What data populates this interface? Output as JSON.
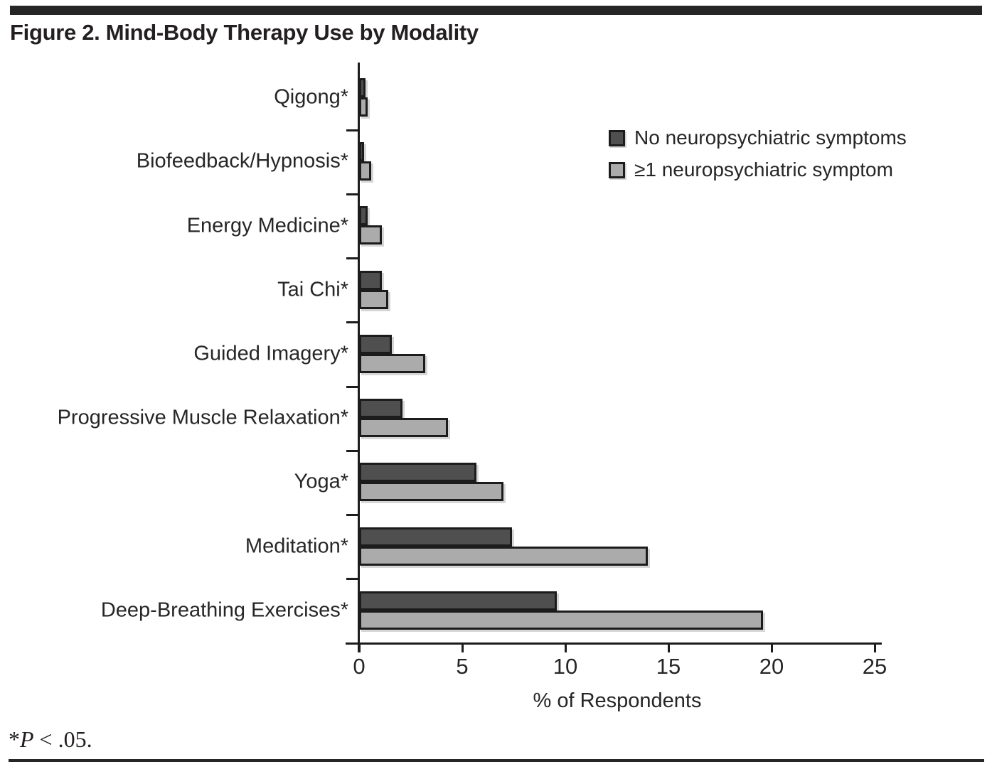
{
  "title": "Figure 2. Mind-Body Therapy Use by Modality",
  "footnote": {
    "star": "*",
    "p": "P",
    "rest": " < .05."
  },
  "colors": {
    "dark_series": "#4f4f4f",
    "light_series": "#ababab",
    "axis": "#1c1c1c",
    "rule": "#262626"
  },
  "chart_data": {
    "type": "bar",
    "orientation": "horizontal",
    "title": "Figure 2. Mind-Body Therapy Use by Modality",
    "categories": [
      "Qigong*",
      "Biofeedback/Hypnosis*",
      "Energy Medicine*",
      "Tai Chi*",
      "Guided Imagery*",
      "Progressive Muscle Relaxation*",
      "Yoga*",
      "Meditation*",
      "Deep-Breathing Exercises*"
    ],
    "series": [
      {
        "name": "No neuropsychiatric symptoms",
        "color": "#4f4f4f",
        "values": [
          0.3,
          0.25,
          0.4,
          1.1,
          1.6,
          2.1,
          5.7,
          7.4,
          9.6
        ]
      },
      {
        "name": "≥1 neuropsychiatric symptom",
        "color": "#ababab",
        "values": [
          0.4,
          0.6,
          1.1,
          1.4,
          3.2,
          4.3,
          7.0,
          14.0,
          19.6
        ]
      }
    ],
    "xlabel": "% of Respondents",
    "xlim": [
      0,
      25
    ],
    "x_ticks": [
      0,
      5,
      10,
      15,
      20,
      25
    ],
    "legend_position": "upper right",
    "grid": false
  }
}
